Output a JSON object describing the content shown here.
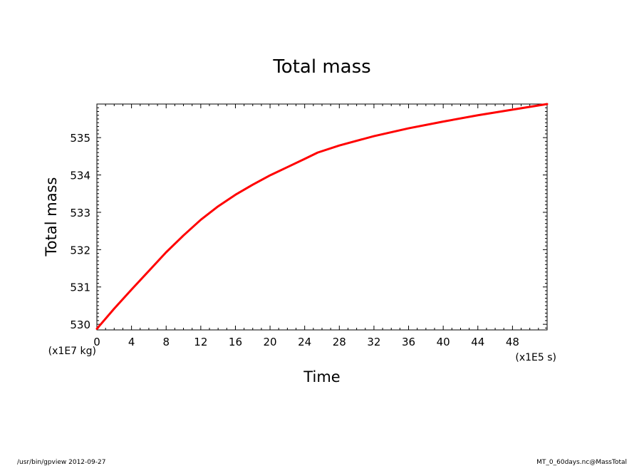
{
  "chart_data": {
    "type": "line",
    "title": "Total mass",
    "xlabel": "Time",
    "ylabel": "Total mass",
    "x_unit": "(x1E5 s)",
    "y_unit": "(x1E7 kg)",
    "xlim": [
      0,
      52
    ],
    "ylim": [
      529.85,
      535.9
    ],
    "x_ticks": [
      0,
      4,
      8,
      12,
      16,
      20,
      24,
      28,
      32,
      36,
      40,
      44,
      48
    ],
    "y_ticks": [
      530,
      531,
      532,
      533,
      534,
      535
    ],
    "grid": false,
    "series": [
      {
        "color": "#ff0000",
        "x": [
          0,
          2,
          4,
          6,
          8,
          10,
          12,
          14,
          16,
          18,
          20,
          22,
          24,
          25.5,
          28,
          32,
          36,
          40,
          44,
          48,
          52
        ],
        "y": [
          529.88,
          530.42,
          530.93,
          531.43,
          531.93,
          532.38,
          532.8,
          533.16,
          533.47,
          533.74,
          533.99,
          534.21,
          534.43,
          534.6,
          534.79,
          535.04,
          535.25,
          535.43,
          535.6,
          535.75,
          535.9
        ]
      }
    ]
  },
  "footer": {
    "left": "/usr/bin/gpview  2012-09-27",
    "right": "MT_0_60days.nc@MassTotal"
  }
}
